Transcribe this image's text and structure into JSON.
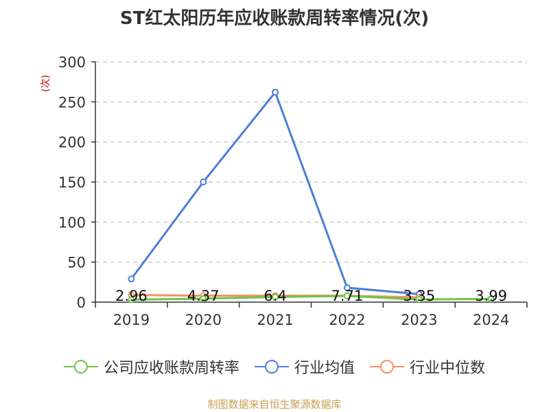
{
  "chart_data": {
    "type": "line",
    "title": "ST红太阳历年应收账款周转率情况(次)",
    "ylabel": "(次)",
    "categories": [
      "2019",
      "2020",
      "2021",
      "2022",
      "2023",
      "2024"
    ],
    "ylim": [
      0,
      300
    ],
    "yticks": [
      "0",
      "50",
      "100",
      "150",
      "200",
      "250",
      "300"
    ],
    "grid": true,
    "legend_position": "bottom",
    "series": [
      {
        "name": "公司应收账款周转率",
        "color": "#6cc645",
        "values": [
          2.96,
          4.37,
          6.4,
          7.71,
          3.35,
          3.99
        ],
        "labels": [
          "2.96",
          "4.37",
          "6.4",
          "7.71",
          "3.35",
          "3.99"
        ]
      },
      {
        "name": "行业均值",
        "color": "#4a7ed8",
        "values": [
          29,
          150,
          262,
          18,
          10,
          null
        ]
      },
      {
        "name": "行业中位数",
        "color": "#f59160",
        "values": [
          9,
          8,
          8,
          8,
          6,
          null
        ]
      }
    ]
  },
  "source": "制图数据来自恒生聚源数据库"
}
